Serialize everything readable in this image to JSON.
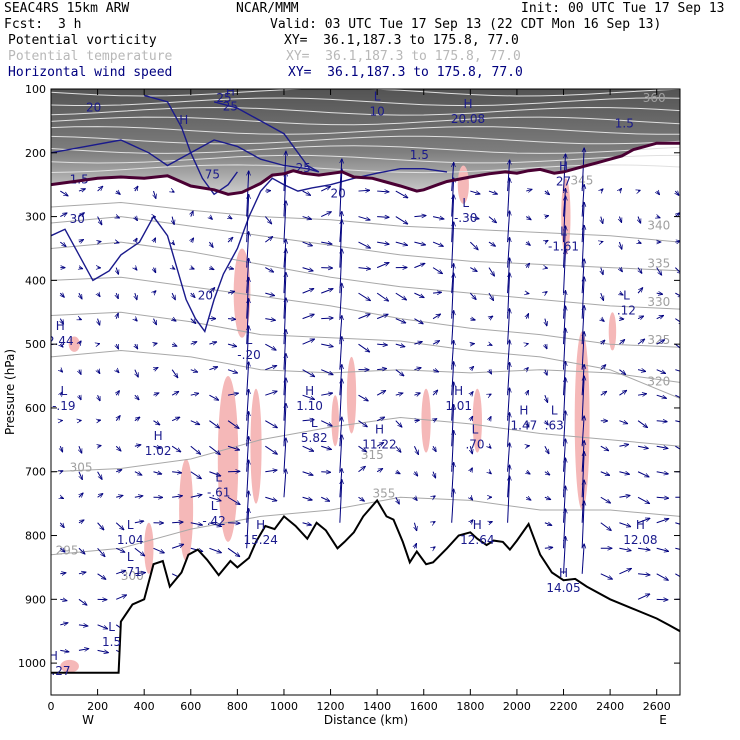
{
  "header": {
    "model": "SEAC4RS 15km ARW",
    "org": "NCAR/MMM",
    "init": "Init: 00 UTC Tue 17 Sep 13",
    "fcst_label": "Fcst:",
    "fcst_value": "3 h",
    "valid": "Valid: 03 UTC Tue 17 Sep 13 (22 CDT Mon 16 Sep 13)"
  },
  "fields": [
    {
      "name": "Potential vorticity",
      "xy": "XY=  36.1,187.3 to 175.8, 77.0",
      "color": "#000000"
    },
    {
      "name": "Potential temperature",
      "xy": "XY=  36.1,187.3 to 175.8, 77.0",
      "color": "#b8b8b8"
    },
    {
      "name": "Horizontal wind speed",
      "xy": "XY=  36.1,187.3 to 175.8, 77.0",
      "color": "#00007f"
    }
  ],
  "chart_data": {
    "type": "cross-section",
    "xlabel": "Distance (km)",
    "ylabel": "Pressure (hPa)",
    "xlim": [
      0,
      2700
    ],
    "ylim": [
      1050,
      100
    ],
    "x_ticks": [
      "0",
      "200",
      "400",
      "600",
      "800",
      "1000",
      "1200",
      "1400",
      "1600",
      "1800",
      "2000",
      "2200",
      "2400",
      "2600"
    ],
    "y_ticks": [
      "100",
      "200",
      "300",
      "400",
      "500",
      "600",
      "700",
      "800",
      "900",
      "1000"
    ],
    "left_end": "W",
    "right_end": "E",
    "terrain": [
      [
        0,
        1015
      ],
      [
        290,
        1015
      ],
      [
        300,
        935
      ],
      [
        350,
        908
      ],
      [
        400,
        900
      ],
      [
        440,
        845
      ],
      [
        480,
        840
      ],
      [
        510,
        880
      ],
      [
        560,
        858
      ],
      [
        590,
        830
      ],
      [
        630,
        822
      ],
      [
        670,
        838
      ],
      [
        720,
        862
      ],
      [
        770,
        840
      ],
      [
        800,
        850
      ],
      [
        850,
        835
      ],
      [
        880,
        810
      ],
      [
        920,
        785
      ],
      [
        960,
        790
      ],
      [
        1000,
        770
      ],
      [
        1050,
        785
      ],
      [
        1100,
        805
      ],
      [
        1140,
        780
      ],
      [
        1180,
        792
      ],
      [
        1230,
        820
      ],
      [
        1260,
        810
      ],
      [
        1300,
        795
      ],
      [
        1340,
        770
      ],
      [
        1400,
        745
      ],
      [
        1440,
        770
      ],
      [
        1470,
        775
      ],
      [
        1510,
        810
      ],
      [
        1540,
        842
      ],
      [
        1570,
        825
      ],
      [
        1610,
        845
      ],
      [
        1640,
        842
      ],
      [
        1700,
        820
      ],
      [
        1750,
        800
      ],
      [
        1800,
        795
      ],
      [
        1830,
        805
      ],
      [
        1870,
        815
      ],
      [
        1900,
        808
      ],
      [
        1940,
        810
      ],
      [
        1970,
        822
      ],
      [
        2000,
        808
      ],
      [
        2050,
        782
      ],
      [
        2100,
        830
      ],
      [
        2150,
        858
      ],
      [
        2200,
        870
      ],
      [
        2250,
        868
      ],
      [
        2300,
        880
      ],
      [
        2400,
        900
      ],
      [
        2500,
        915
      ],
      [
        2600,
        930
      ],
      [
        2650,
        940
      ],
      [
        2700,
        950
      ]
    ],
    "pv_tropopause_hpa": [
      [
        0,
        250
      ],
      [
        100,
        245
      ],
      [
        200,
        240
      ],
      [
        300,
        238
      ],
      [
        400,
        240
      ],
      [
        500,
        236
      ],
      [
        600,
        252
      ],
      [
        700,
        258
      ],
      [
        760,
        265
      ],
      [
        820,
        262
      ],
      [
        900,
        248
      ],
      [
        950,
        235
      ],
      [
        1000,
        233
      ],
      [
        1040,
        228
      ],
      [
        1080,
        232
      ],
      [
        1150,
        235
      ],
      [
        1250,
        230
      ],
      [
        1300,
        238
      ],
      [
        1380,
        240
      ],
      [
        1430,
        245
      ],
      [
        1500,
        252
      ],
      [
        1570,
        260
      ],
      [
        1600,
        258
      ],
      [
        1660,
        250
      ],
      [
        1700,
        245
      ],
      [
        1800,
        238
      ],
      [
        1880,
        233
      ],
      [
        1950,
        230
      ],
      [
        2000,
        232
      ],
      [
        2050,
        228
      ],
      [
        2100,
        226
      ],
      [
        2160,
        232
      ],
      [
        2200,
        230
      ],
      [
        2250,
        225
      ],
      [
        2300,
        220
      ],
      [
        2350,
        215
      ],
      [
        2400,
        210
      ],
      [
        2450,
        205
      ],
      [
        2500,
        195
      ],
      [
        2550,
        190
      ],
      [
        2600,
        185
      ],
      [
        2650,
        185
      ],
      [
        2700,
        185
      ]
    ],
    "theta_contours": [
      "295",
      "300",
      "305",
      "315",
      "320",
      "325",
      "330",
      "335",
      "340",
      "345",
      "355",
      "360"
    ],
    "wind_contours": [
      "20",
      "25",
      "30"
    ],
    "pv_labels": [
      "1.5",
      "1.5",
      "1.5"
    ],
    "extrema": [
      {
        "type": "H",
        "value": "20.08",
        "x": 1790,
        "p": 130
      },
      {
        "type": "H",
        "value": "",
        "x": 570,
        "p": 155
      },
      {
        "type": "L",
        "value": "10",
        "x": 1400,
        "p": 118
      },
      {
        "type": "H",
        "value": "25",
        "x": 770,
        "p": 110
      },
      {
        "type": "H",
        "value": "27",
        "x": 2200,
        "p": 228
      },
      {
        "type": "L",
        "value": "-.30",
        "x": 1780,
        "p": 285
      },
      {
        "type": "L",
        "value": "-1.61",
        "x": 2200,
        "p": 330
      },
      {
        "type": "L",
        "value": ".12",
        "x": 2470,
        "p": 430
      },
      {
        "type": "H",
        "value": "2.44",
        "x": 40,
        "p": 478
      },
      {
        "type": "L",
        "value": "-.19",
        "x": 55,
        "p": 580
      },
      {
        "type": "L",
        "value": "-.20",
        "x": 850,
        "p": 500
      },
      {
        "type": "H",
        "value": "1.02",
        "x": 460,
        "p": 650
      },
      {
        "type": "L",
        "value": "-.61",
        "x": 720,
        "p": 715
      },
      {
        "type": "L",
        "value": "-.42",
        "x": 700,
        "p": 760
      },
      {
        "type": "L",
        "value": "1.04",
        "x": 340,
        "p": 790
      },
      {
        "type": "L",
        "value": "-.71",
        "x": 340,
        "p": 840
      },
      {
        "type": "H",
        "value": "15.24",
        "x": 900,
        "p": 790
      },
      {
        "type": "H",
        "value": "1.10",
        "x": 1110,
        "p": 580
      },
      {
        "type": "L",
        "value": "5.82",
        "x": 1130,
        "p": 630
      },
      {
        "type": "H",
        "value": "11.22",
        "x": 1410,
        "p": 640
      },
      {
        "type": "H",
        "value": "1.01",
        "x": 1750,
        "p": 580
      },
      {
        "type": "L",
        "value": ".70",
        "x": 1820,
        "p": 640
      },
      {
        "type": "H",
        "value": "1.47",
        "x": 2030,
        "p": 610
      },
      {
        "type": "L",
        "value": ".63",
        "x": 2160,
        "p": 610
      },
      {
        "type": "H",
        "value": "12.64",
        "x": 1830,
        "p": 790
      },
      {
        "type": "H",
        "value": "12.08",
        "x": 2530,
        "p": 790
      },
      {
        "type": "H",
        "value": "14.05",
        "x": 2200,
        "p": 865
      },
      {
        "type": "H",
        "value": "11.27",
        "x": 10,
        "p": 995
      },
      {
        "type": "L",
        "value": "1.5",
        "x": 260,
        "p": 950
      }
    ]
  }
}
